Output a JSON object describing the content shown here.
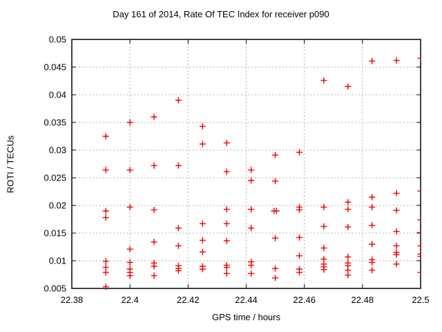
{
  "chart_data": {
    "type": "scatter",
    "title": "Day 161 of 2014, Rate Of TEC Index for receiver p090",
    "xlabel": "GPS time / hours",
    "ylabel": "ROTI / TECUs",
    "xlim": [
      22.38,
      22.5
    ],
    "ylim": [
      0.005,
      0.05
    ],
    "grid": true,
    "legend": "none",
    "marker_shape": "plus",
    "marker_color": "#ee0000",
    "marker_size": 9,
    "grid_color": "#b0b0b0",
    "axis_color": "#000000",
    "background_color": "#ffffff",
    "xticks": [
      {
        "value": 22.38,
        "label": "22.38"
      },
      {
        "value": 22.4,
        "label": "22.4"
      },
      {
        "value": 22.42,
        "label": "22.42"
      },
      {
        "value": 22.44,
        "label": "22.44"
      },
      {
        "value": 22.46,
        "label": "22.46"
      },
      {
        "value": 22.48,
        "label": "22.48"
      },
      {
        "value": 22.5,
        "label": "22.5"
      }
    ],
    "yticks": [
      {
        "value": 0.005,
        "label": "0.005"
      },
      {
        "value": 0.01,
        "label": "0.01"
      },
      {
        "value": 0.015,
        "label": "0.015"
      },
      {
        "value": 0.02,
        "label": "0.02"
      },
      {
        "value": 0.025,
        "label": "0.025"
      },
      {
        "value": 0.03,
        "label": "0.03"
      },
      {
        "value": 0.035,
        "label": "0.035"
      },
      {
        "value": 0.04,
        "label": "0.04"
      },
      {
        "value": 0.045,
        "label": "0.045"
      },
      {
        "value": 0.05,
        "label": "0.05"
      }
    ],
    "points": [
      [
        22.3917,
        0.0325
      ],
      [
        22.3917,
        0.0264
      ],
      [
        22.3917,
        0.019
      ],
      [
        22.3917,
        0.0178
      ],
      [
        22.3917,
        0.0099
      ],
      [
        22.3917,
        0.0088
      ],
      [
        22.3917,
        0.0079
      ],
      [
        22.3917,
        0.0053
      ],
      [
        22.4,
        0.035
      ],
      [
        22.4,
        0.0264
      ],
      [
        22.4,
        0.0197
      ],
      [
        22.4,
        0.0121
      ],
      [
        22.4,
        0.0097
      ],
      [
        22.4,
        0.0085
      ],
      [
        22.4,
        0.0079
      ],
      [
        22.4,
        0.0073
      ],
      [
        22.4083,
        0.036
      ],
      [
        22.4083,
        0.0272
      ],
      [
        22.4083,
        0.0192
      ],
      [
        22.4083,
        0.0134
      ],
      [
        22.4083,
        0.0096
      ],
      [
        22.4083,
        0.009
      ],
      [
        22.4083,
        0.0073
      ],
      [
        22.4167,
        0.039
      ],
      [
        22.4167,
        0.0272
      ],
      [
        22.4167,
        0.0159
      ],
      [
        22.4167,
        0.0127
      ],
      [
        22.4167,
        0.0091
      ],
      [
        22.4167,
        0.0086
      ],
      [
        22.4167,
        0.0082
      ],
      [
        22.425,
        0.0343
      ],
      [
        22.425,
        0.0311
      ],
      [
        22.425,
        0.0167
      ],
      [
        22.425,
        0.0137
      ],
      [
        22.425,
        0.0116
      ],
      [
        22.425,
        0.009
      ],
      [
        22.425,
        0.0085
      ],
      [
        22.4333,
        0.0313
      ],
      [
        22.4333,
        0.0261
      ],
      [
        22.4333,
        0.0193
      ],
      [
        22.4333,
        0.0167
      ],
      [
        22.4333,
        0.0136
      ],
      [
        22.4333,
        0.0092
      ],
      [
        22.4333,
        0.0088
      ],
      [
        22.4333,
        0.0077
      ],
      [
        22.4417,
        0.0264
      ],
      [
        22.4417,
        0.0245
      ],
      [
        22.4417,
        0.0193
      ],
      [
        22.4417,
        0.0159
      ],
      [
        22.4417,
        0.0098
      ],
      [
        22.4417,
        0.0092
      ],
      [
        22.4417,
        0.0077
      ],
      [
        22.45,
        0.0291
      ],
      [
        22.45,
        0.0244
      ],
      [
        22.4496,
        0.019
      ],
      [
        22.4504,
        0.019
      ],
      [
        22.45,
        0.0141
      ],
      [
        22.45,
        0.0086
      ],
      [
        22.45,
        0.0069
      ],
      [
        22.4583,
        0.0296
      ],
      [
        22.4583,
        0.0197
      ],
      [
        22.4583,
        0.0192
      ],
      [
        22.4583,
        0.0142
      ],
      [
        22.4583,
        0.0109
      ],
      [
        22.4583,
        0.0085
      ],
      [
        22.4583,
        0.0079
      ],
      [
        22.4667,
        0.0426
      ],
      [
        22.4667,
        0.0197
      ],
      [
        22.4667,
        0.0162
      ],
      [
        22.4667,
        0.0123
      ],
      [
        22.4667,
        0.0103
      ],
      [
        22.4667,
        0.0094
      ],
      [
        22.4667,
        0.0089
      ],
      [
        22.4667,
        0.0084
      ],
      [
        22.475,
        0.0415
      ],
      [
        22.475,
        0.0206
      ],
      [
        22.475,
        0.0193
      ],
      [
        22.475,
        0.0161
      ],
      [
        22.475,
        0.0107
      ],
      [
        22.475,
        0.0096
      ],
      [
        22.475,
        0.0091
      ],
      [
        22.475,
        0.0083
      ],
      [
        22.475,
        0.0074
      ],
      [
        22.4833,
        0.0461
      ],
      [
        22.4833,
        0.0215
      ],
      [
        22.4833,
        0.0197
      ],
      [
        22.4833,
        0.0164
      ],
      [
        22.4833,
        0.013
      ],
      [
        22.4833,
        0.0102
      ],
      [
        22.4833,
        0.0097
      ],
      [
        22.4833,
        0.0083
      ],
      [
        22.4917,
        0.0462
      ],
      [
        22.4917,
        0.0222
      ],
      [
        22.4917,
        0.0191
      ],
      [
        22.4917,
        0.0153
      ],
      [
        22.4917,
        0.0127
      ],
      [
        22.4917,
        0.0115
      ],
      [
        22.4917,
        0.0111
      ],
      [
        22.4917,
        0.0094
      ],
      [
        22.5,
        0.0466
      ],
      [
        22.5,
        0.0226
      ],
      [
        22.5,
        0.0174
      ],
      [
        22.5,
        0.0151
      ],
      [
        22.5,
        0.0127
      ],
      [
        22.5,
        0.0112
      ],
      [
        22.5,
        0.0108
      ],
      [
        22.5,
        0.0079
      ]
    ]
  }
}
